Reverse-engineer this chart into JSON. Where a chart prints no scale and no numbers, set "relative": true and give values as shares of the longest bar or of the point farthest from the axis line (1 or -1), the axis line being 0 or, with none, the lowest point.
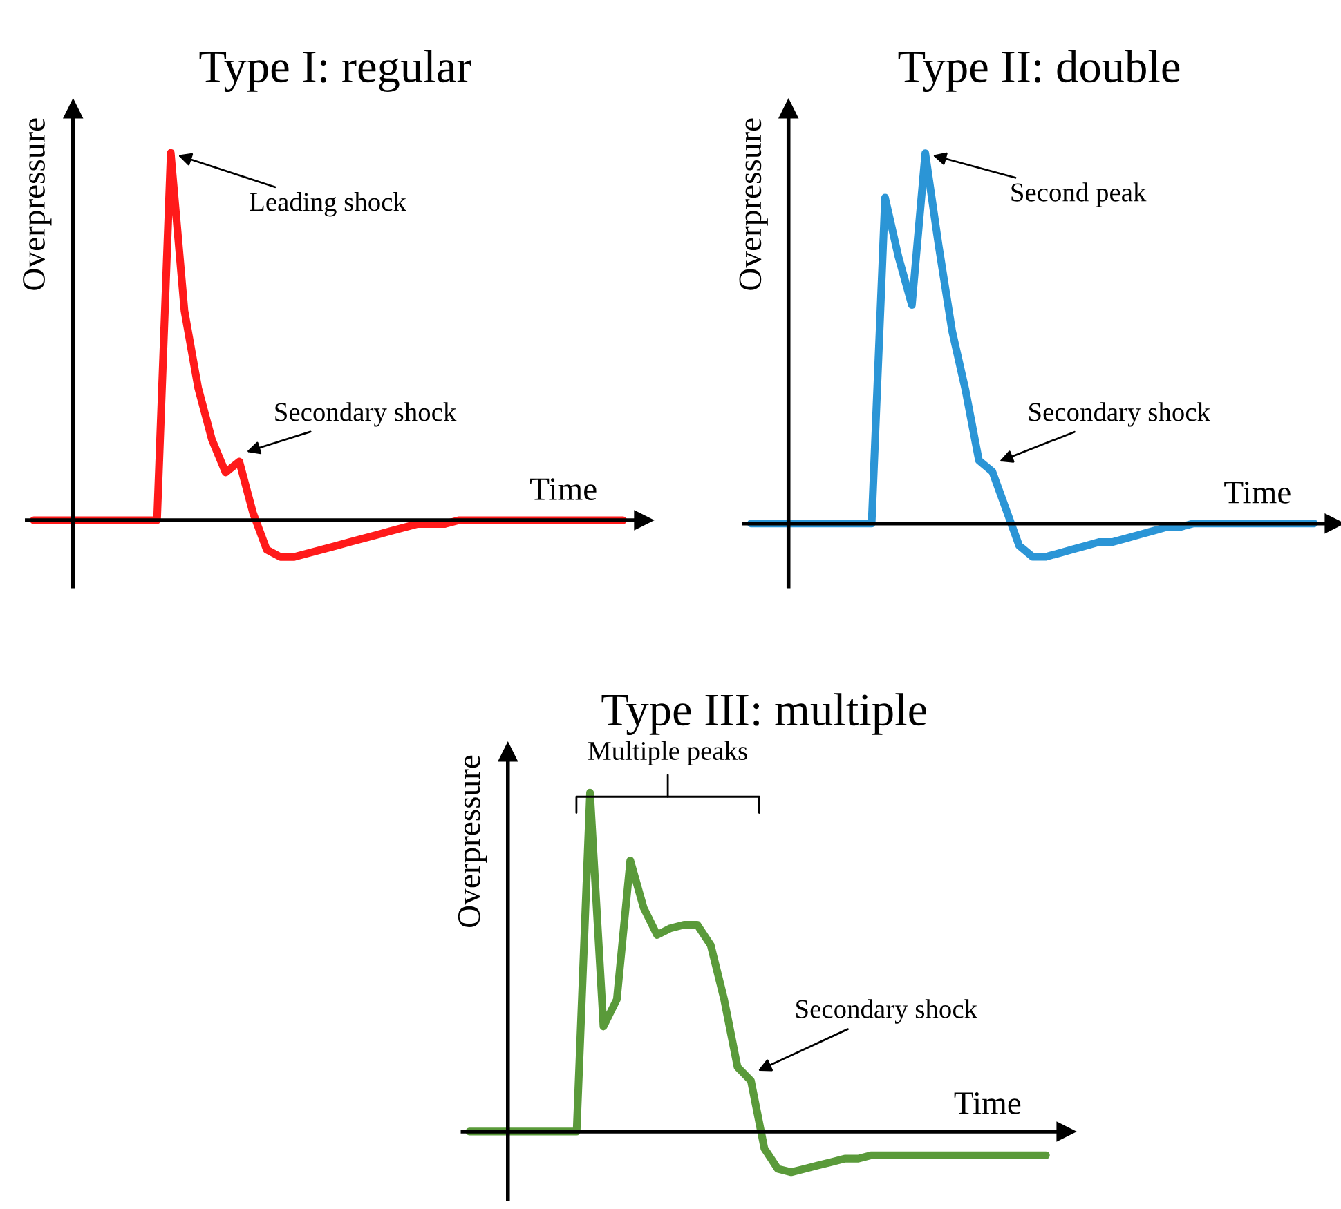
{
  "chart_data": [
    {
      "type": "line",
      "title": "Type I: regular",
      "xlabel": "Time",
      "ylabel": "Overpressure",
      "relative": true,
      "legend": false,
      "grid": false,
      "marker": "none",
      "line_style": "solid",
      "categories": [
        null,
        null,
        null,
        null,
        null,
        null,
        null,
        null,
        null,
        null,
        null,
        null,
        null,
        null,
        null,
        null,
        null,
        null,
        null,
        null,
        null,
        null,
        null,
        null,
        null,
        null,
        null,
        null,
        null,
        null,
        null,
        null,
        null,
        null,
        null,
        null,
        null,
        null,
        null,
        null,
        null,
        null,
        null,
        null
      ],
      "series": [
        {
          "color": "#ff1a1a",
          "values": [
            0,
            0,
            0,
            0,
            0,
            0,
            0,
            0,
            0,
            0,
            1.0,
            0.57,
            0.36,
            0.22,
            0.13,
            0.16,
            0.02,
            -0.08,
            -0.1,
            -0.1,
            -0.09,
            -0.08,
            -0.07,
            -0.06,
            -0.05,
            -0.04,
            -0.03,
            -0.02,
            -0.01,
            -0.01,
            -0.01,
            0,
            0,
            0,
            0,
            0,
            0,
            0,
            0,
            0,
            0,
            0,
            0,
            0
          ]
        }
      ],
      "annotations": [
        "Leading shock",
        "Secondary shock"
      ]
    },
    {
      "type": "line",
      "title": "Type II: double",
      "xlabel": "Time",
      "ylabel": "Overpressure",
      "relative": true,
      "legend": false,
      "grid": false,
      "marker": "none",
      "line_style": "solid",
      "categories": [
        null,
        null,
        null,
        null,
        null,
        null,
        null,
        null,
        null,
        null,
        null,
        null,
        null,
        null,
        null,
        null,
        null,
        null,
        null,
        null,
        null,
        null,
        null,
        null,
        null,
        null,
        null,
        null,
        null,
        null,
        null,
        null,
        null,
        null,
        null,
        null,
        null,
        null,
        null,
        null,
        null,
        null,
        null
      ],
      "series": [
        {
          "color": "#2b95d6",
          "values": [
            0,
            0,
            0,
            0,
            0,
            0,
            0,
            0,
            0,
            0,
            0.88,
            0.72,
            0.59,
            1.0,
            0.75,
            0.52,
            0.36,
            0.17,
            0.14,
            0.04,
            -0.06,
            -0.09,
            -0.09,
            -0.08,
            -0.07,
            -0.06,
            -0.05,
            -0.05,
            -0.04,
            -0.03,
            -0.02,
            -0.01,
            -0.01,
            0,
            0,
            0,
            0,
            0,
            0,
            0,
            0,
            0,
            0
          ]
        }
      ],
      "annotations": [
        "Second peak",
        "Secondary shock"
      ]
    },
    {
      "type": "line",
      "title": "Type III: multiple",
      "xlabel": "Time",
      "ylabel": "Overpressure",
      "relative": true,
      "legend": false,
      "grid": false,
      "marker": "none",
      "line_style": "solid",
      "categories": [
        null,
        null,
        null,
        null,
        null,
        null,
        null,
        null,
        null,
        null,
        null,
        null,
        null,
        null,
        null,
        null,
        null,
        null,
        null,
        null,
        null,
        null,
        null,
        null,
        null,
        null,
        null,
        null,
        null,
        null,
        null,
        null,
        null,
        null,
        null,
        null,
        null,
        null,
        null,
        null,
        null,
        null,
        null,
        null
      ],
      "series": [
        {
          "color": "#5a9a3a",
          "values": [
            0,
            0,
            0,
            0,
            0,
            0,
            0,
            0,
            0,
            1.0,
            0.31,
            0.39,
            0.8,
            0.66,
            0.58,
            0.6,
            0.61,
            0.61,
            0.55,
            0.39,
            0.19,
            0.15,
            -0.05,
            -0.11,
            -0.12,
            -0.11,
            -0.1,
            -0.09,
            -0.08,
            -0.08,
            -0.07,
            -0.07,
            -0.07,
            -0.07,
            -0.07,
            -0.07,
            -0.07,
            -0.07,
            -0.07,
            -0.07,
            -0.07,
            -0.07,
            -0.07,
            -0.07
          ]
        }
      ],
      "annotations": [
        "Multiple peaks",
        "Secondary shock"
      ]
    }
  ]
}
